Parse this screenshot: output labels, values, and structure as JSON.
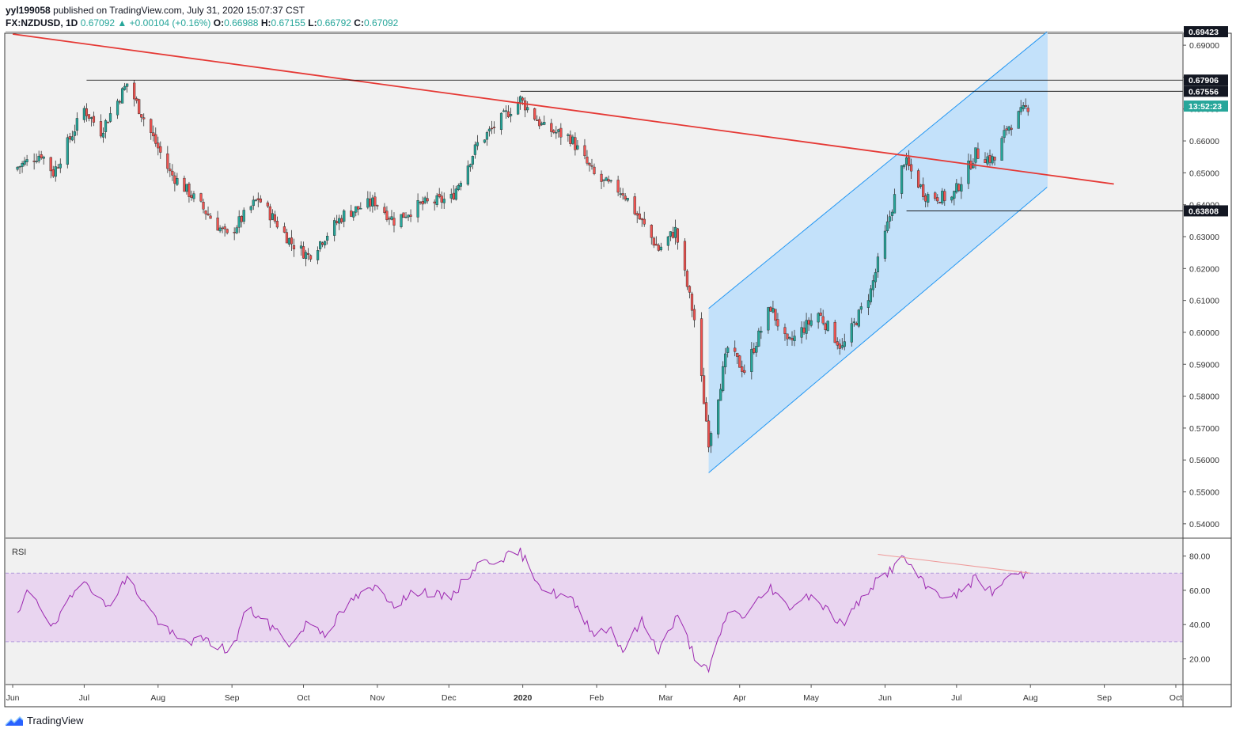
{
  "header": {
    "publisher": "yyl199058",
    "published_text": "published on TradingView.com, July 31, 2020 15:07:37 CST",
    "symbol": "FX:NZDUSD, 1D",
    "last": "0.67092",
    "change_arrow": "▲",
    "change": "+0.00104 (+0.16%)",
    "o_label": "O:",
    "o_value": "0.66988",
    "h_label": "H:",
    "h_value": "0.67155",
    "l_label": "L:",
    "l_value": "0.66792",
    "c_label": "C:",
    "c_value": "0.67092"
  },
  "footer": {
    "brand": "TradingView",
    "logo_icon": "tradingview-logo-icon"
  },
  "colors": {
    "up": "#26a69a",
    "down": "#ef5350",
    "trendline": "#e53935",
    "channel_line": "#2196f3",
    "channel_fill": "#bbdefb",
    "rsi_line": "#9c27b0",
    "rsi_band": "#e9d5f0",
    "levels": "#000000"
  },
  "chart_data": [
    {
      "type": "candlestick",
      "symbol": "FX:NZDUSD",
      "interval": "1D",
      "y_ticks": [
        "0.69000",
        "0.68000",
        "0.67000",
        "0.66000",
        "0.65000",
        "0.64000",
        "0.63000",
        "0.62000",
        "0.61000",
        "0.60000",
        "0.59000",
        "0.58000",
        "0.57000",
        "0.56000",
        "0.55000",
        "0.54000"
      ],
      "ylim": [
        0.5355,
        0.6935
      ],
      "x_ticks": [
        "Jun",
        "Jul",
        "Aug",
        "Sep",
        "Oct",
        "Nov",
        "Dec",
        "2020",
        "Feb",
        "Mar",
        "Apr",
        "May",
        "Jun",
        "Jul",
        "Aug",
        "Sep",
        "Oct"
      ],
      "x_tick_dates": [
        "2019-06-01",
        "2019-07-01",
        "2019-08-01",
        "2019-09-01",
        "2019-10-01",
        "2019-11-01",
        "2019-12-01",
        "2020-01-01",
        "2020-02-01",
        "2020-03-01",
        "2020-04-01",
        "2020-05-01",
        "2020-06-01",
        "2020-07-01",
        "2020-08-01",
        "2020-09-01",
        "2020-10-01"
      ],
      "xlim": [
        "2019-05-29",
        "2020-10-04"
      ],
      "price_labels": [
        {
          "value": 0.69423,
          "text": "0.69423"
        },
        {
          "value": 0.67906,
          "text": "0.67906"
        },
        {
          "value": 0.67556,
          "text": "0.67556"
        },
        {
          "value": 0.67092,
          "text": "13:52:23",
          "kind": "countdown"
        },
        {
          "value": 0.63808,
          "text": "0.63808"
        }
      ],
      "horizontal_levels": [
        {
          "value": 0.67906,
          "from": "2019-07-02"
        },
        {
          "value": 0.67556,
          "from": "2019-12-31"
        },
        {
          "value": 0.63808,
          "from": "2020-06-10"
        }
      ],
      "trendline": {
        "from": [
          "2019-06-01",
          0.6935
        ],
        "to": [
          "2020-09-05",
          0.6465
        ]
      },
      "channel": {
        "upper_from": [
          "2020-03-19",
          0.6075
        ],
        "upper_to": [
          "2020-08-08",
          0.6942
        ],
        "lower_from": [
          "2020-03-19",
          0.556
        ],
        "lower_to": [
          "2020-08-08",
          0.6455
        ]
      },
      "series": [
        {
          "name": "NZDUSD",
          "anchors": [
            [
              "2019-06-01",
              0.651
            ],
            [
              "2019-06-13",
              0.656
            ],
            [
              "2019-06-18",
              0.65
            ],
            [
              "2019-07-01",
              0.67
            ],
            [
              "2019-07-08",
              0.663
            ],
            [
              "2019-07-19",
              0.678
            ],
            [
              "2019-08-06",
              0.65
            ],
            [
              "2019-08-15",
              0.643
            ],
            [
              "2019-08-30",
              0.63
            ],
            [
              "2019-09-12",
              0.642
            ],
            [
              "2019-09-26",
              0.628
            ],
            [
              "2019-10-03",
              0.624
            ],
            [
              "2019-10-18",
              0.637
            ],
            [
              "2019-10-31",
              0.641
            ],
            [
              "2019-11-08",
              0.635
            ],
            [
              "2019-11-19",
              0.64
            ],
            [
              "2019-12-02",
              0.642
            ],
            [
              "2019-12-13",
              0.659
            ],
            [
              "2019-12-31",
              0.673
            ],
            [
              "2020-01-10",
              0.664
            ],
            [
              "2020-01-21",
              0.661
            ],
            [
              "2020-02-01",
              0.648
            ],
            [
              "2020-02-12",
              0.644
            ],
            [
              "2020-02-27",
              0.626
            ],
            [
              "2020-03-05",
              0.632
            ],
            [
              "2020-03-13",
              0.604
            ],
            [
              "2020-03-19",
              0.566
            ],
            [
              "2020-03-27",
              0.595
            ],
            [
              "2020-04-03",
              0.588
            ],
            [
              "2020-04-14",
              0.608
            ],
            [
              "2020-04-21",
              0.596
            ],
            [
              "2020-05-04",
              0.606
            ],
            [
              "2020-05-14",
              0.595
            ],
            [
              "2020-05-26",
              0.613
            ],
            [
              "2020-06-09",
              0.654
            ],
            [
              "2020-06-18",
              0.643
            ],
            [
              "2020-06-29",
              0.642
            ],
            [
              "2020-07-09",
              0.656
            ],
            [
              "2020-07-17",
              0.654
            ],
            [
              "2020-07-22",
              0.664
            ],
            [
              "2020-07-31",
              0.6709
            ]
          ]
        }
      ]
    },
    {
      "type": "line",
      "title": "RSI",
      "y_ticks": [
        "80.00",
        "60.00",
        "40.00",
        "20.00"
      ],
      "ylim": [
        5,
        90
      ],
      "band": [
        30,
        70
      ],
      "divergence_line": {
        "from": [
          "2020-05-29",
          81
        ],
        "to": [
          "2020-08-01",
          70
        ]
      },
      "series": [
        {
          "name": "RSI",
          "anchors": [
            [
              "2019-06-01",
              37
            ],
            [
              "2019-06-08",
              62
            ],
            [
              "2019-06-18",
              38
            ],
            [
              "2019-07-01",
              68
            ],
            [
              "2019-07-10",
              50
            ],
            [
              "2019-07-19",
              67
            ],
            [
              "2019-08-01",
              42
            ],
            [
              "2019-08-10",
              30
            ],
            [
              "2019-08-20",
              31
            ],
            [
              "2019-09-01",
              24
            ],
            [
              "2019-09-07",
              50
            ],
            [
              "2019-09-20",
              36
            ],
            [
              "2019-09-26",
              28
            ],
            [
              "2019-10-03",
              42
            ],
            [
              "2019-10-10",
              35
            ],
            [
              "2019-10-22",
              55
            ],
            [
              "2019-11-01",
              62
            ],
            [
              "2019-11-08",
              52
            ],
            [
              "2019-11-19",
              60
            ],
            [
              "2019-12-01",
              55
            ],
            [
              "2019-12-13",
              75
            ],
            [
              "2019-12-31",
              82
            ],
            [
              "2020-01-10",
              60
            ],
            [
              "2020-01-21",
              55
            ],
            [
              "2020-01-31",
              35
            ],
            [
              "2020-02-07",
              38
            ],
            [
              "2020-02-12",
              25
            ],
            [
              "2020-02-20",
              42
            ],
            [
              "2020-02-27",
              25
            ],
            [
              "2020-03-06",
              45
            ],
            [
              "2020-03-13",
              22
            ],
            [
              "2020-03-19",
              12
            ],
            [
              "2020-03-27",
              48
            ],
            [
              "2020-04-03",
              45
            ],
            [
              "2020-04-14",
              62
            ],
            [
              "2020-04-21",
              50
            ],
            [
              "2020-05-01",
              58
            ],
            [
              "2020-05-14",
              40
            ],
            [
              "2020-05-26",
              62
            ],
            [
              "2020-06-09",
              79
            ],
            [
              "2020-06-18",
              62
            ],
            [
              "2020-06-29",
              55
            ],
            [
              "2020-07-09",
              67
            ],
            [
              "2020-07-17",
              58
            ],
            [
              "2020-07-22",
              68
            ],
            [
              "2020-07-31",
              70
            ]
          ]
        }
      ]
    }
  ]
}
